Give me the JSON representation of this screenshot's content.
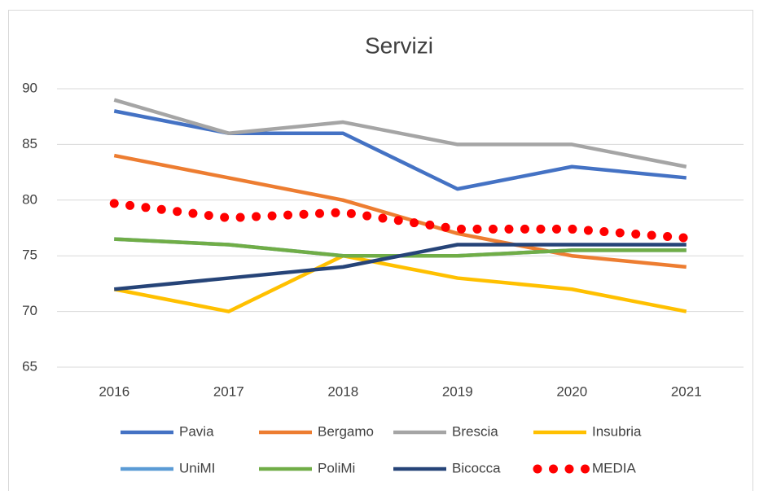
{
  "chart_data": {
    "type": "line",
    "title": "Servizi",
    "categories": [
      "2016",
      "2017",
      "2018",
      "2019",
      "2020",
      "2021"
    ],
    "series": [
      {
        "name": "Pavia",
        "color": "#4472c4",
        "values": [
          88,
          86,
          86,
          81,
          83,
          82
        ]
      },
      {
        "name": "Bergamo",
        "color": "#ed7d31",
        "values": [
          84,
          82,
          80,
          77,
          75,
          74
        ]
      },
      {
        "name": "Brescia",
        "color": "#a5a5a5",
        "values": [
          89,
          86,
          87,
          85,
          85,
          83
        ]
      },
      {
        "name": "Insubria",
        "color": "#ffc000",
        "values": [
          72,
          70,
          75,
          73,
          72,
          70
        ]
      },
      {
        "name": "UniMI",
        "color": "#5b9bd5",
        "values": [
          76.5,
          76,
          75,
          75,
          75.5,
          75.5
        ]
      },
      {
        "name": "PoliMi",
        "color": "#70ad47",
        "values": [
          76.5,
          76,
          75,
          75,
          75.5,
          75.5
        ]
      },
      {
        "name": "Bicocca",
        "color": "#264478",
        "values": [
          72,
          73,
          74,
          76,
          76,
          76
        ]
      },
      {
        "name": "MEDIA",
        "color": "#ff0000",
        "values": [
          79.7,
          78.4,
          78.9,
          77.4,
          77.4,
          76.6
        ],
        "dotted": true
      }
    ],
    "ylim": [
      65,
      90
    ],
    "yticks": [
      65,
      70,
      75,
      80,
      85,
      90
    ],
    "grid": true,
    "legend": "bottom"
  }
}
